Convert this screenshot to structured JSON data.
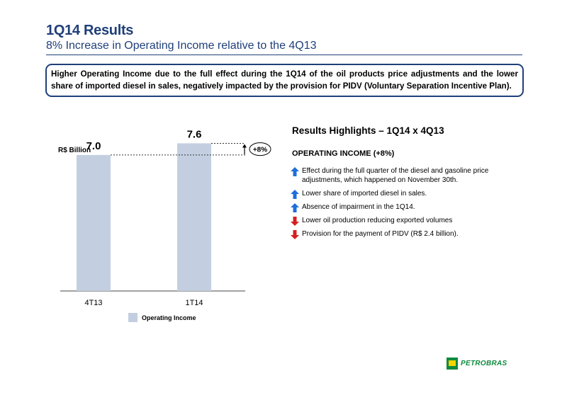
{
  "header": {
    "title": "1Q14 Results",
    "subtitle": "8% Increase in Operating Income relative to the 4Q13",
    "summary": "Higher Operating Income due to the full effect during the 1Q14 of the oil products price adjustments and the lower share of imported diesel in sales, negatively impacted by the provision for PIDV (Voluntary Separation Incentive Plan)."
  },
  "chart_data": {
    "type": "bar",
    "categories": [
      "4T13",
      "1T14"
    ],
    "series": [
      {
        "name": "Operating Income",
        "values": [
          7.0,
          7.6
        ],
        "color": "#c3cfe0"
      }
    ],
    "value_labels": [
      "7.0",
      "7.6"
    ],
    "unit_label": "R$ Billion",
    "change_label": "+8%",
    "ylim": [
      0,
      8.6
    ],
    "legend_position": "bottom-center"
  },
  "highlights": {
    "title": "Results Highlights – 1Q14 x 4Q13",
    "section_title": "OPERATING INCOME (+8%)",
    "items": [
      {
        "text": "Effect during the full quarter of the diesel and gasoline price adjustments, which happened on November 30th.",
        "direction": "up",
        "color": "#1e6fd9"
      },
      {
        "text": "Lower share of imported diesel in sales.",
        "direction": "up",
        "color": "#1e6fd9"
      },
      {
        "text": "Absence of impairment in the 1Q14.",
        "direction": "up",
        "color": "#1e6fd9"
      },
      {
        "text": "Lower oil production reducing exported volumes",
        "direction": "down",
        "color": "#d42020"
      },
      {
        "text": "Provision for the payment of PIDV (R$ 2.4 billion).",
        "direction": "down",
        "color": "#d42020"
      }
    ]
  },
  "logo": {
    "text": "PETROBRAS",
    "icon": "petrobras-logo-icon",
    "color": "#0f8a3d"
  }
}
